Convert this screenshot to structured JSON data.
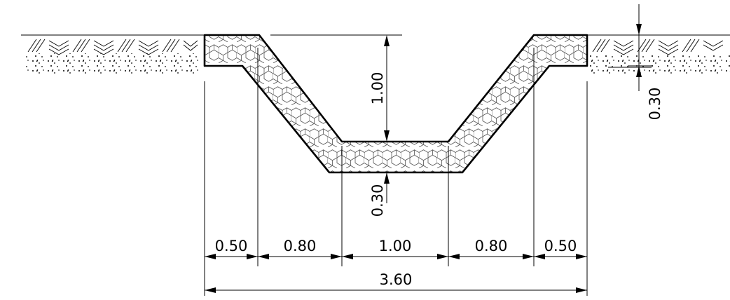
{
  "dimensions": {
    "depth": "1.00",
    "lining_thickness_center": "0.30",
    "lining_thickness_right": "0.30",
    "bottom": {
      "berm_left": "0.50",
      "slope_left": "0.80",
      "base": "1.00",
      "slope_right": "0.80",
      "berm_right": "0.50",
      "total": "3.60"
    }
  },
  "icons": {
    "lining": "hexagon-gabion-pattern",
    "soil": "earth-hatch-pattern"
  }
}
